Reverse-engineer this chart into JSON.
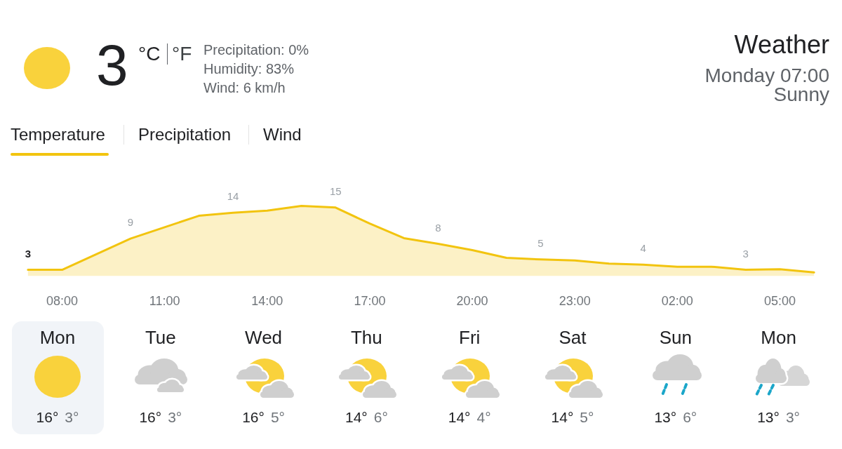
{
  "chart_data": [
    {
      "type": "area",
      "title": "Weather",
      "subtitle": "Monday 07:00",
      "annotations": [
        "Sunny",
        "3",
        "°C",
        "°F",
        "Precipitation: 0%",
        "Humidity: 83%",
        "Wind: 6 km/h",
        "Temperature",
        "Precipitation",
        "Wind"
      ],
      "categories": [
        null,
        "08:00",
        null,
        null,
        "11:00",
        null,
        null,
        "14:00",
        null,
        null,
        "17:00",
        null,
        null,
        "20:00",
        null,
        null,
        "23:00",
        null,
        null,
        "02:00",
        null,
        null,
        "05:00",
        null
      ],
      "values": [
        3,
        3,
        6.0,
        9,
        11.2,
        13.4,
        14,
        14.4,
        15.3,
        15,
        11.9,
        9.1,
        8,
        6.8,
        5.3,
        5,
        4.8,
        4.2,
        4,
        3.6,
        3.6,
        3,
        3.1,
        2.5
      ],
      "value_labels": [
        "3",
        null,
        null,
        "9",
        null,
        null,
        "14",
        null,
        null,
        "15",
        null,
        null,
        "8",
        null,
        null,
        "5",
        null,
        null,
        "4",
        null,
        null,
        "3",
        null,
        null
      ],
      "color": "#f2c40f",
      "tick_labels": "x"
    },
    {
      "type": "other",
      "categories": [
        "Mon",
        "Tue",
        "Wed",
        "Thu",
        "Fri",
        "Sat",
        "Sun",
        "Mon"
      ],
      "annotations": [
        "16°",
        "3°",
        "16°",
        "3°",
        "16°",
        "5°",
        "14°",
        "6°",
        "14°",
        "4°",
        "14°",
        "5°",
        "13°",
        "6°",
        "13°",
        "3°"
      ]
    }
  ]
}
